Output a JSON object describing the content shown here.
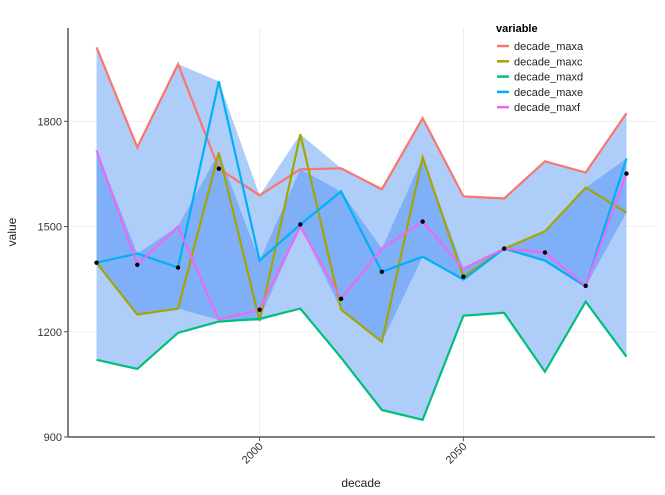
{
  "chart_data": {
    "type": "line",
    "title": "",
    "xlabel": "decade",
    "ylabel": "value",
    "x": [
      1960,
      1970,
      1980,
      1990,
      2000,
      2010,
      2020,
      2030,
      2040,
      2050,
      2060,
      2070,
      2080,
      2090
    ],
    "xlim": [
      1953,
      2097
    ],
    "ylim": [
      900,
      2066
    ],
    "xticks": [
      2000,
      2050
    ],
    "xtick_labels": [
      "2000",
      "2050"
    ],
    "yticks": [
      900,
      1200,
      1500,
      1800
    ],
    "ytick_labels": [
      "900",
      "1200",
      "1500",
      "1800"
    ],
    "grid": true,
    "legend": {
      "title": "variable",
      "placement": "top-right"
    },
    "ribbons": [
      {
        "name": "min-max range",
        "color": "#aecdf9"
      },
      {
        "name": "interquartile range",
        "color": "#7fb0f7"
      }
    ],
    "points": {
      "name": "median",
      "color": "#000000"
    },
    "series": [
      {
        "name": "decade_maxa",
        "color": "#F8766D",
        "values": [
          2011,
          1726,
          1963,
          1665,
          1589,
          1663,
          1666,
          1606,
          1809,
          1586,
          1580,
          1686,
          1654,
          1823
        ]
      },
      {
        "name": "decade_maxc",
        "color": "#A3A500",
        "values": [
          1397,
          1249,
          1266,
          1711,
          1231,
          1763,
          1263,
          1171,
          1697,
          1357,
          1437,
          1486,
          1611,
          1540
        ]
      },
      {
        "name": "decade_maxd",
        "color": "#00BF7D",
        "values": [
          1120,
          1094,
          1197,
          1229,
          1237,
          1266,
          1126,
          977,
          949,
          1246,
          1254,
          1086,
          1286,
          1129
        ]
      },
      {
        "name": "decade_maxe",
        "color": "#00B0F6",
        "values": [
          1397,
          1423,
          1383,
          1914,
          1403,
          1506,
          1600,
          1371,
          1414,
          1349,
          1437,
          1403,
          1329,
          1694
        ]
      },
      {
        "name": "decade_maxf",
        "color": "#E76BF3",
        "values": [
          1717,
          1391,
          1500,
          1234,
          1263,
          1500,
          1294,
          1437,
          1514,
          1380,
          1437,
          1426,
          1331,
          1651
        ]
      }
    ]
  }
}
